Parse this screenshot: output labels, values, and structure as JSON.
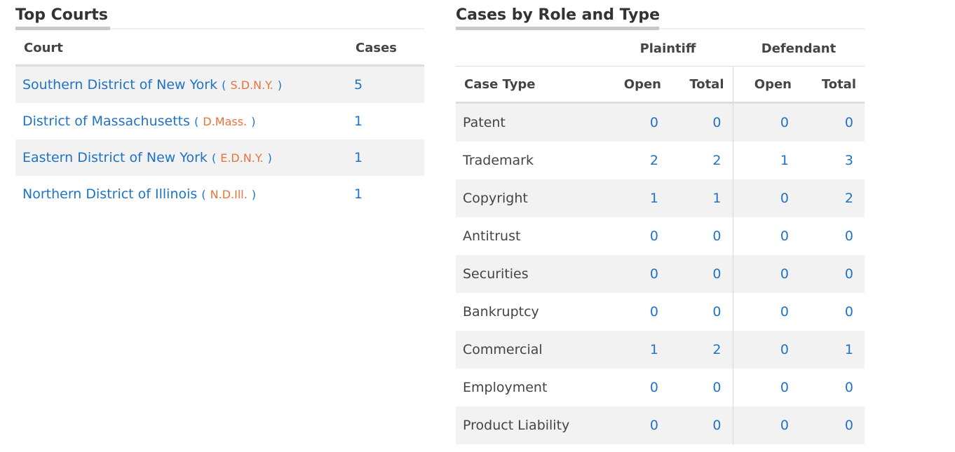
{
  "top_courts": {
    "title": "Top Courts",
    "headers": {
      "court": "Court",
      "cases": "Cases"
    },
    "rows": [
      {
        "name": "Southern District of New York",
        "abbr": "S.D.N.Y.",
        "cases": "5"
      },
      {
        "name": "District of Massachusetts",
        "abbr": "D.Mass.",
        "cases": "1"
      },
      {
        "name": "Eastern District of New York",
        "abbr": "E.D.N.Y.",
        "cases": "1"
      },
      {
        "name": "Northern District of Illinois",
        "abbr": "N.D.Ill.",
        "cases": "1"
      }
    ]
  },
  "cases_by_role": {
    "title": "Cases by Role and Type",
    "group_headers": {
      "plaintiff": "Plaintiff",
      "defendant": "Defendant"
    },
    "sub_headers": {
      "case_type": "Case Type",
      "open": "Open",
      "total": "Total"
    },
    "rows": [
      {
        "type": "Patent",
        "p_open": "0",
        "p_total": "0",
        "d_open": "0",
        "d_total": "0"
      },
      {
        "type": "Trademark",
        "p_open": "2",
        "p_total": "2",
        "d_open": "1",
        "d_total": "3"
      },
      {
        "type": "Copyright",
        "p_open": "1",
        "p_total": "1",
        "d_open": "0",
        "d_total": "2"
      },
      {
        "type": "Antitrust",
        "p_open": "0",
        "p_total": "0",
        "d_open": "0",
        "d_total": "0"
      },
      {
        "type": "Securities",
        "p_open": "0",
        "p_total": "0",
        "d_open": "0",
        "d_total": "0"
      },
      {
        "type": "Bankruptcy",
        "p_open": "0",
        "p_total": "0",
        "d_open": "0",
        "d_total": "0"
      },
      {
        "type": "Commercial",
        "p_open": "1",
        "p_total": "2",
        "d_open": "0",
        "d_total": "1"
      },
      {
        "type": "Employment",
        "p_open": "0",
        "p_total": "0",
        "d_open": "0",
        "d_total": "0"
      },
      {
        "type": "Product Liability",
        "p_open": "0",
        "p_total": "0",
        "d_open": "0",
        "d_total": "0"
      }
    ]
  },
  "colors": {
    "link": "#1f73c7",
    "abbr": "#e8733a",
    "stripe": "#f2f2f2"
  }
}
